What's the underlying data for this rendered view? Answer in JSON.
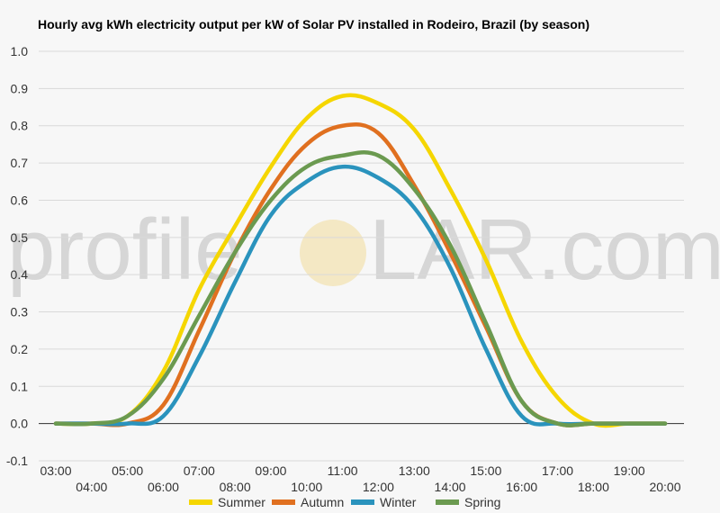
{
  "chart_data": {
    "type": "line",
    "title": "Hourly avg kWh electricity output per kW of Solar PV installed in Rodeiro, Brazil (by season)",
    "xlabel": "",
    "ylabel": "",
    "ylim": [
      -0.1,
      1.0
    ],
    "yticks": [
      -0.1,
      0.0,
      0.1,
      0.2,
      0.3,
      0.4,
      0.5,
      0.6,
      0.7,
      0.8,
      0.9,
      1.0
    ],
    "ytick_labels": [
      "-0.1",
      "0.0",
      "0.1",
      "0.2",
      "0.3",
      "0.4",
      "0.5",
      "0.6",
      "0.7",
      "0.8",
      "0.9",
      "1.0"
    ],
    "categories": [
      "03:00",
      "04:00",
      "05:00",
      "06:00",
      "07:00",
      "08:00",
      "09:00",
      "10:00",
      "11:00",
      "12:00",
      "13:00",
      "14:00",
      "15:00",
      "16:00",
      "17:00",
      "18:00",
      "19:00",
      "20:00"
    ],
    "grid": true,
    "legend": "bottom",
    "series": [
      {
        "name": "Summer",
        "color": "#f5d600",
        "values": [
          0.0,
          0.0,
          0.02,
          0.14,
          0.36,
          0.53,
          0.69,
          0.82,
          0.88,
          0.86,
          0.79,
          0.63,
          0.44,
          0.22,
          0.07,
          0.0,
          0.0,
          0.0
        ]
      },
      {
        "name": "Autumn",
        "color": "#e07020",
        "values": [
          0.0,
          0.0,
          0.0,
          0.05,
          0.25,
          0.46,
          0.63,
          0.75,
          0.8,
          0.78,
          0.64,
          0.46,
          0.26,
          0.06,
          0.0,
          0.0,
          0.0,
          0.0
        ]
      },
      {
        "name": "Winter",
        "color": "#2a93bd",
        "values": [
          0.0,
          0.0,
          0.0,
          0.02,
          0.18,
          0.38,
          0.56,
          0.65,
          0.69,
          0.66,
          0.58,
          0.42,
          0.2,
          0.02,
          0.0,
          0.0,
          0.0,
          0.0
        ]
      },
      {
        "name": "Spring",
        "color": "#6b9a50",
        "values": [
          0.0,
          0.0,
          0.02,
          0.12,
          0.29,
          0.46,
          0.6,
          0.69,
          0.72,
          0.72,
          0.63,
          0.48,
          0.27,
          0.06,
          0.0,
          0.0,
          0.0,
          0.0
        ]
      }
    ]
  },
  "watermark": {
    "text_left": "profile",
    "text_right": "LAR.com"
  }
}
